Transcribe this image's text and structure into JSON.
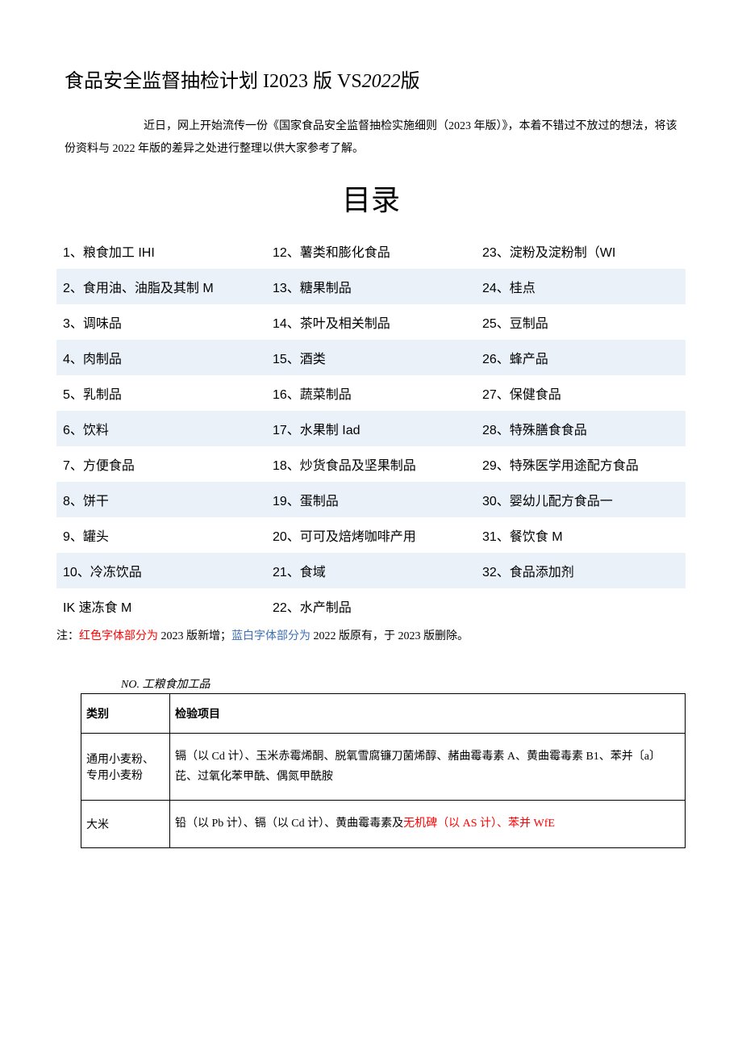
{
  "title_parts": {
    "p1": "食品安全监督抽检计划 I2023 版 VS",
    "p2": "2022",
    "p3": "版"
  },
  "intro": "近日，网上开始流传一份《国家食品安全监督抽检实施细则（2023 年版）》，本着不错过不放过的想法，将该份资料与 2022 年版的差异之处进行整理以供大家参考了解。",
  "toc_heading": "目录",
  "toc": {
    "col1": [
      "1、粮食加工 IHI",
      "2、食用油、油脂及其制 M",
      "3、调味品",
      "4、肉制品",
      "5、乳制品",
      "6、饮料",
      "7、方便食品",
      "8、饼干",
      "9、罐头",
      "10、冷冻饮品",
      "IK 速冻食 M"
    ],
    "col2": [
      "12、薯类和膨化食品",
      "13、糖果制品",
      "14、茶叶及相关制品",
      "15、酒类",
      "16、蔬菜制品",
      "17、水果制 Iad",
      "18、炒货食品及坚果制品",
      "19、蛋制品",
      "20、可可及焙烤咖啡产用",
      "21、食域",
      "22、水产制品"
    ],
    "col3": [
      "23、淀粉及淀粉制（WI",
      "24、桂点",
      "25、豆制品",
      "26、蜂产品",
      "27、保健食品",
      "28、特殊膳食食品",
      "29、特殊医学用途配方食品",
      "30、婴幼儿配方食品一",
      "31、餐饮食 M",
      "32、食品添加剂",
      ""
    ]
  },
  "note": {
    "prefix": "注：",
    "red": "红色字体部分为",
    "mid1": " 2023 版新增；",
    "blue": "蓝白字体部分为",
    "mid2": " 2022 版原有，于 2023 版删除。"
  },
  "grain_table": {
    "title": "NO. 工粮食加工品",
    "headers": {
      "cat": "类别",
      "items": "检验项目"
    },
    "rows": [
      {
        "cat": "通用小麦粉、专用小麦粉",
        "items_plain": "镉（以 Cd 计）、玉米赤霉烯酮、脱氧雪腐镰刀菌烯醇、赭曲霉毒素 A、黄曲霉毒素 B1、苯并〔a〕芘、过氧化苯甲酰、偶氮甲酰胺",
        "items_red": ""
      },
      {
        "cat": "大米",
        "items_plain": "铅（以 Pb 计）、镉（以 Cd 计）、黄曲霉毒素及",
        "items_red": "无机碑（以 AS 计）、苯并 WfE"
      }
    ]
  },
  "colors": {
    "alt_row_bg": "#eaf1f8",
    "red": "#ff0000",
    "blue": "#3b6fb6",
    "text": "#000000",
    "bg": "#ffffff"
  }
}
